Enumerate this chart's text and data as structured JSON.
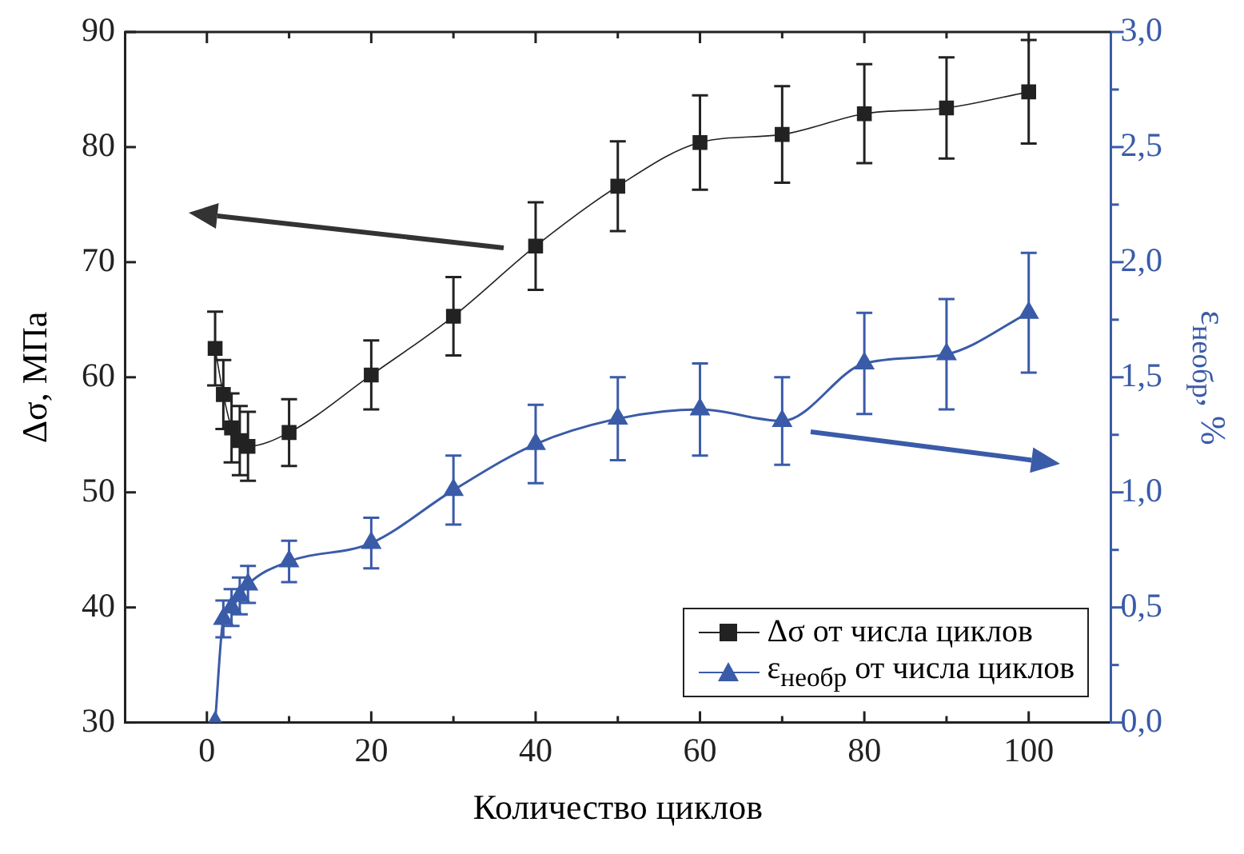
{
  "chart_data": {
    "type": "line",
    "xlabel": "Количество циклов",
    "ylabel": "Δσ, МПа",
    "y2label": "ε$_{необр}$, %",
    "x": [
      1,
      2,
      3,
      4,
      5,
      10,
      20,
      30,
      40,
      50,
      60,
      70,
      80,
      90,
      100
    ],
    "series": [
      {
        "name": "Δσ от числа циклов",
        "color": "#222222",
        "marker": "square",
        "values": [
          62.5,
          58.5,
          55.6,
          54.5,
          54.0,
          55.2,
          60.2,
          65.3,
          71.4,
          76.6,
          80.4,
          81.1,
          82.9,
          83.4,
          84.8
        ],
        "errors": [
          3.2,
          3.0,
          3.0,
          3.0,
          3.0,
          2.9,
          3.0,
          3.4,
          3.8,
          3.9,
          4.1,
          4.2,
          4.3,
          4.4,
          4.5
        ]
      },
      {
        "name": "ε$_{необр}$ от числа циклов",
        "color": "#3a5ba8",
        "marker": "triangle",
        "axis": "y2",
        "values": [
          0.0,
          0.45,
          0.5,
          0.55,
          0.6,
          0.7,
          0.78,
          1.01,
          1.21,
          1.32,
          1.36,
          1.31,
          1.56,
          1.6,
          1.78
        ],
        "errors": [
          null,
          0.08,
          0.08,
          0.08,
          0.08,
          0.09,
          0.11,
          0.15,
          0.17,
          0.18,
          0.2,
          0.19,
          0.22,
          0.24,
          0.26
        ]
      }
    ],
    "xlim": [
      -10,
      110
    ],
    "xticks": [
      0,
      {
        "value": 10,
        "label": null
      },
      20,
      {
        "value": 30,
        "label": null
      },
      40,
      {
        "value": 50,
        "label": null
      },
      60,
      {
        "value": 70,
        "label": null
      },
      80,
      {
        "value": 90,
        "label": null
      },
      100
    ],
    "ylim": [
      30,
      90
    ],
    "yticks": [
      30,
      40,
      50,
      60,
      70,
      80,
      90
    ],
    "y2lim": [
      0,
      3
    ],
    "y2ticks": [
      {
        "value": 0,
        "label": "0,0"
      },
      {
        "value": 0.25,
        "label": null
      },
      {
        "value": 0.5,
        "label": "0,5"
      },
      {
        "value": 0.75,
        "label": null
      },
      {
        "value": 1,
        "label": "1,0"
      },
      {
        "value": 1.25,
        "label": null
      },
      {
        "value": 1.5,
        "label": "1,5"
      },
      {
        "value": 1.75,
        "label": null
      },
      {
        "value": 2,
        "label": "2,0"
      },
      {
        "value": 2.25,
        "label": null
      },
      {
        "value": 2.5,
        "label": "2,5"
      },
      {
        "value": 2.75,
        "label": null
      },
      {
        "value": 3,
        "label": "3,0"
      }
    ],
    "grid": false,
    "legend": "bottom right",
    "line_style": "solid"
  }
}
